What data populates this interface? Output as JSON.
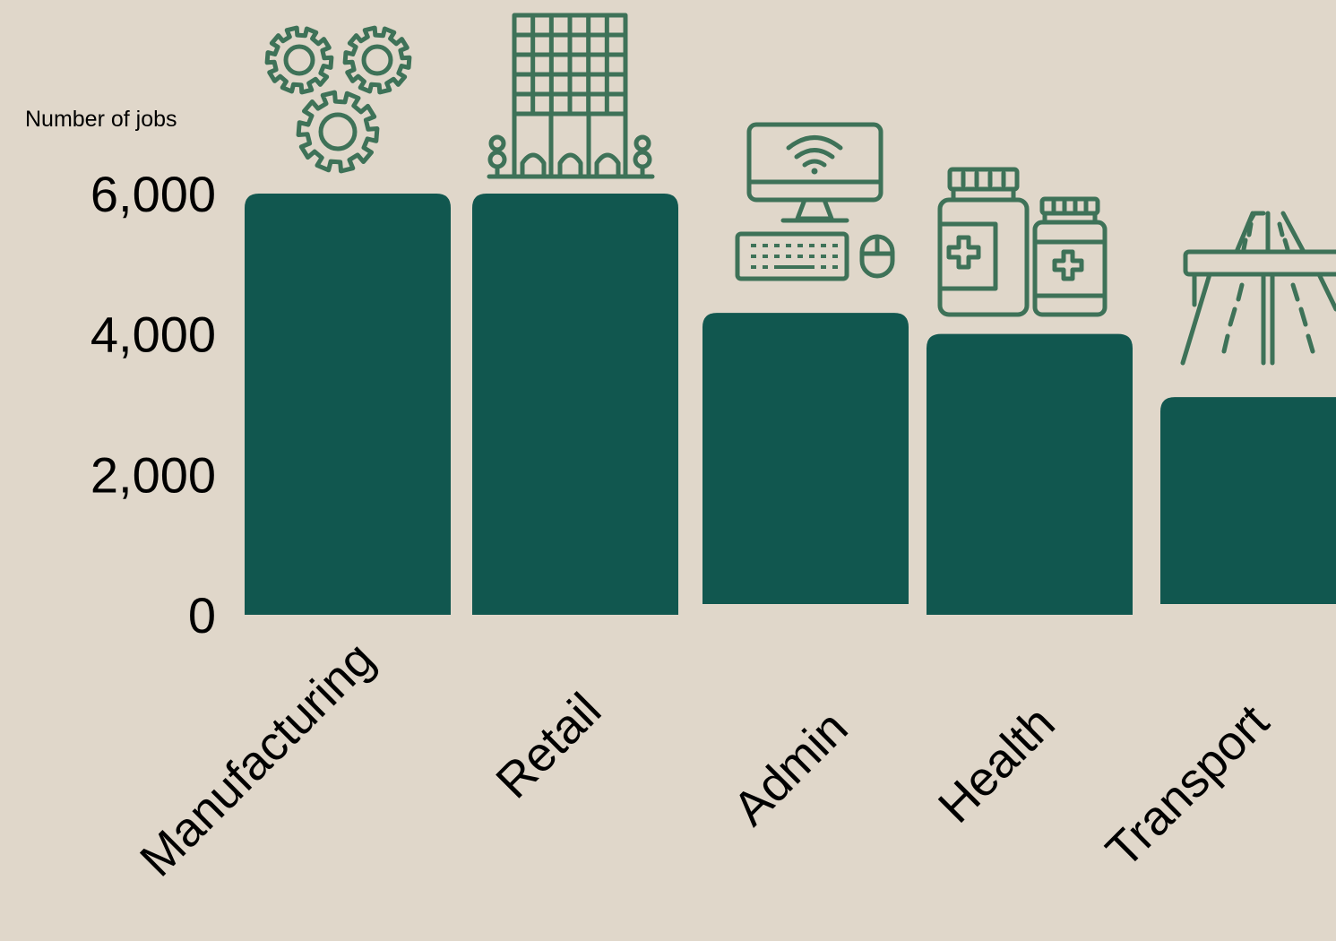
{
  "chart_data": {
    "type": "bar",
    "ylabel": "Number of jobs",
    "categories": [
      "Manufacturing",
      "Retail",
      "Admin",
      "Health",
      "Transport"
    ],
    "values": [
      6000,
      6000,
      4300,
      4000,
      3100
    ],
    "ylim": [
      0,
      6000
    ],
    "yticks": [
      "0",
      "2,000",
      "4,000",
      "6,000"
    ],
    "ytick_values": [
      0,
      2000,
      4000,
      6000
    ],
    "grid": false,
    "legend": "none",
    "bar_color": "#11574f",
    "icon_color": "#3e7258",
    "icons": [
      "gears-icon",
      "office-building-icon",
      "desktop-computer-icon",
      "medicine-bottles-icon",
      "highway-bridge-icon"
    ]
  }
}
